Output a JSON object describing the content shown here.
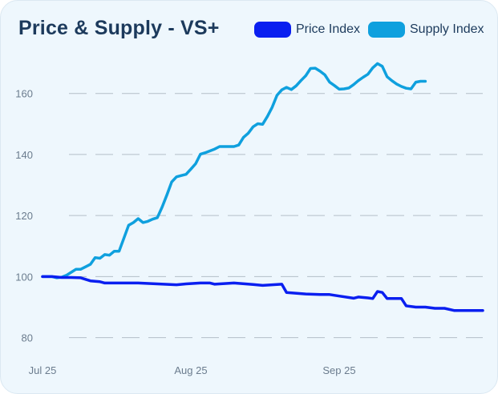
{
  "chart_data": {
    "type": "line",
    "title": "Price & Supply - VS+",
    "xlabel": "",
    "ylabel": "",
    "x_ticks": [
      {
        "label": "Jul 25",
        "x": 0
      },
      {
        "label": "Aug 25",
        "x": 31
      },
      {
        "label": "Sep 25",
        "x": 62
      }
    ],
    "y_ticks": [
      80,
      100,
      120,
      140,
      160
    ],
    "ylim": [
      77,
      172
    ],
    "xlim": [
      0,
      92
    ],
    "grid": "horizontal-dashed",
    "legend_position": "top-right",
    "series": [
      {
        "name": "Price Index",
        "color": "#0a1ff0",
        "points": [
          [
            0,
            100
          ],
          [
            2,
            100
          ],
          [
            4,
            99.7
          ],
          [
            6,
            99.7
          ],
          [
            8,
            99.6
          ],
          [
            10,
            98.6
          ],
          [
            12,
            98.3
          ],
          [
            13,
            97.9
          ],
          [
            16,
            97.9
          ],
          [
            20,
            97.9
          ],
          [
            24,
            97.6
          ],
          [
            28,
            97.3
          ],
          [
            30,
            97.6
          ],
          [
            33,
            97.9
          ],
          [
            35,
            97.9
          ],
          [
            36,
            97.5
          ],
          [
            40,
            97.9
          ],
          [
            44,
            97.4
          ],
          [
            46,
            97.1
          ],
          [
            50,
            97.5
          ],
          [
            51,
            94.8
          ],
          [
            55,
            94.3
          ],
          [
            58,
            94.1
          ],
          [
            60,
            94.1
          ],
          [
            62,
            93.6
          ],
          [
            65,
            92.9
          ],
          [
            66,
            93.3
          ],
          [
            68,
            93.0
          ],
          [
            69,
            92.8
          ],
          [
            70,
            95.1
          ],
          [
            71,
            94.8
          ],
          [
            72,
            92.8
          ],
          [
            75,
            92.8
          ],
          [
            76,
            90.4
          ],
          [
            78,
            90.0
          ],
          [
            80,
            90.0
          ],
          [
            82,
            89.6
          ],
          [
            84,
            89.6
          ],
          [
            86,
            88.9
          ],
          [
            90,
            88.9
          ],
          [
            92,
            88.9
          ]
        ]
      },
      {
        "name": "Supply Index",
        "color": "#0fa0de",
        "points": [
          [
            0,
            100
          ],
          [
            2,
            100
          ],
          [
            3,
            99.6
          ],
          [
            4,
            99.8
          ],
          [
            5,
            100.4
          ],
          [
            6,
            101.4
          ],
          [
            7,
            102.4
          ],
          [
            8,
            102.4
          ],
          [
            9,
            103.2
          ],
          [
            10,
            104.0
          ],
          [
            11,
            106.2
          ],
          [
            12,
            106.0
          ],
          [
            13,
            107.2
          ],
          [
            14,
            107.0
          ],
          [
            15,
            108.3
          ],
          [
            16,
            108.3
          ],
          [
            17,
            112.5
          ],
          [
            18,
            116.8
          ],
          [
            19,
            117.7
          ],
          [
            20,
            119.0
          ],
          [
            21,
            117.7
          ],
          [
            22,
            118.1
          ],
          [
            23,
            118.8
          ],
          [
            24,
            119.3
          ],
          [
            25,
            122.8
          ],
          [
            26,
            126.8
          ],
          [
            27,
            131.0
          ],
          [
            28,
            132.7
          ],
          [
            29,
            133.1
          ],
          [
            30,
            133.5
          ],
          [
            31,
            135.2
          ],
          [
            32,
            137.0
          ],
          [
            33,
            140.1
          ],
          [
            34,
            140.6
          ],
          [
            36,
            141.8
          ],
          [
            37,
            142.6
          ],
          [
            38,
            142.6
          ],
          [
            39,
            142.6
          ],
          [
            40,
            142.6
          ],
          [
            41,
            143.1
          ],
          [
            42,
            145.6
          ],
          [
            43,
            147.0
          ],
          [
            44,
            149.1
          ],
          [
            45,
            150.1
          ],
          [
            46,
            149.9
          ],
          [
            47,
            152.5
          ],
          [
            48,
            155.5
          ],
          [
            49,
            159.4
          ],
          [
            50,
            161.2
          ],
          [
            51,
            162.0
          ],
          [
            52,
            161.3
          ],
          [
            53,
            162.5
          ],
          [
            54,
            164.2
          ],
          [
            55,
            165.8
          ],
          [
            56,
            168.2
          ],
          [
            57,
            168.3
          ],
          [
            58,
            167.3
          ],
          [
            59,
            166.1
          ],
          [
            60,
            163.7
          ],
          [
            61,
            162.6
          ],
          [
            62,
            161.4
          ],
          [
            63,
            161.5
          ],
          [
            64,
            161.8
          ],
          [
            65,
            162.9
          ],
          [
            66,
            164.2
          ],
          [
            67,
            165.3
          ],
          [
            68,
            166.3
          ],
          [
            69,
            168.4
          ],
          [
            70,
            169.8
          ],
          [
            71,
            168.9
          ],
          [
            72,
            165.5
          ],
          [
            73,
            164.2
          ],
          [
            74,
            163.1
          ],
          [
            75,
            162.3
          ],
          [
            76,
            161.7
          ],
          [
            77,
            161.5
          ],
          [
            78,
            163.7
          ],
          [
            79,
            164.0
          ],
          [
            80,
            164.0
          ]
        ]
      }
    ]
  }
}
